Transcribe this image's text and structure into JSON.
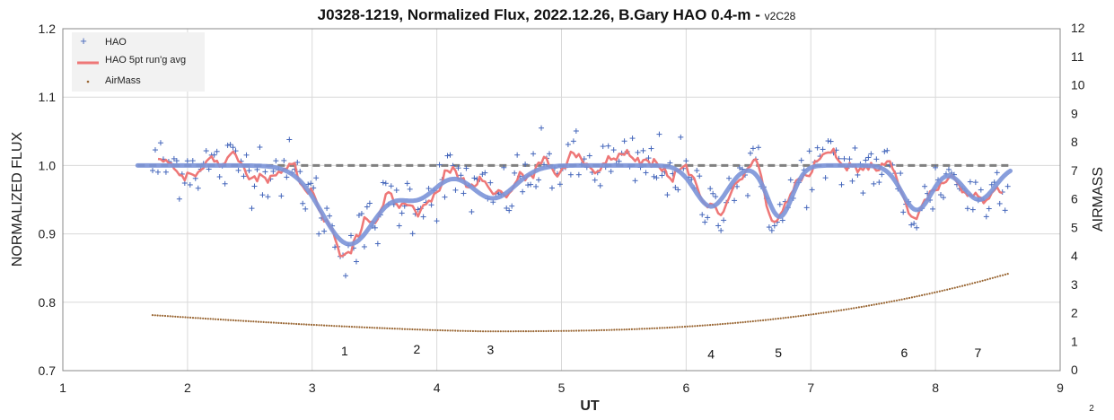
{
  "chart_data": {
    "type": "scatter",
    "title": "J0328-1219, Normalized Flux, 2022.12.26, B.Gary HAO 0.4-m - ",
    "title_suffix": "v2C28",
    "xlabel": "UT",
    "ylabel": "NORMALIZED FLUX",
    "y2label": "AIRMASS",
    "xlim": [
      1,
      9
    ],
    "ylim": [
      0.7,
      1.2
    ],
    "y2lim": [
      0,
      12
    ],
    "x_ticks": [
      "1",
      "2",
      "3",
      "4",
      "5",
      "6",
      "7",
      "8",
      "9"
    ],
    "y_ticks": [
      "0.7",
      "0.8",
      "0.9",
      "1.0",
      "1.1",
      "1.2"
    ],
    "y2_ticks": [
      "0",
      "1",
      "2",
      "3",
      "4",
      "5",
      "6",
      "7",
      "8",
      "9",
      "10",
      "11",
      "12"
    ],
    "grid": true,
    "legend_position": "top-left",
    "legend": [
      {
        "name": "HAO",
        "symbol": "plus",
        "color": "#4466bb"
      },
      {
        "name": "HAO 5pt run'g avg",
        "symbol": "line",
        "color": "#ee7777"
      },
      {
        "name": "AirMass",
        "symbol": "dot",
        "color": "#996633"
      }
    ],
    "reference_line": {
      "y": 1.0,
      "x_start": 1.6,
      "x_end": 8.6,
      "color": "#808080",
      "style": "dashed"
    },
    "model": {
      "color": "#7b93d8",
      "baseline_start": 1.6,
      "baseline_end": 8.6,
      "dips": [
        {
          "label": "1",
          "x_center": 3.3,
          "depth": 0.115,
          "width": 0.22
        },
        {
          "label": "2",
          "x_center": 3.85,
          "depth": 0.045,
          "width": 0.16
        },
        {
          "label": "3",
          "x_center": 4.45,
          "depth": 0.048,
          "width": 0.18
        },
        {
          "label": "4",
          "x_center": 6.2,
          "depth": 0.06,
          "width": 0.13
        },
        {
          "label": "5",
          "x_center": 6.75,
          "depth": 0.075,
          "width": 0.1
        },
        {
          "label": "6",
          "x_center": 7.85,
          "depth": 0.065,
          "width": 0.12
        },
        {
          "label": "7",
          "x_center": 8.35,
          "depth": 0.05,
          "width": 0.13
        }
      ]
    },
    "annotations": [
      {
        "text": "1",
        "x": 3.26,
        "y": 0.722
      },
      {
        "text": "2",
        "x": 3.84,
        "y": 0.725
      },
      {
        "text": "3",
        "x": 4.43,
        "y": 0.724
      },
      {
        "text": "4",
        "x": 6.2,
        "y": 0.718
      },
      {
        "text": "5",
        "x": 6.74,
        "y": 0.72
      },
      {
        "text": "6",
        "x": 7.75,
        "y": 0.72
      },
      {
        "text": "7",
        "x": 8.34,
        "y": 0.72
      }
    ],
    "airmass": {
      "x_start": 1.72,
      "x_end": 8.58,
      "x_min": 4.4,
      "airmass_min": 1.38,
      "airmass_start": 1.95,
      "airmass_end": 3.4
    },
    "observations": {
      "x_start": 1.72,
      "x_end": 8.58,
      "count": 320,
      "scatter": 0.028
    }
  },
  "page_corner_label": "2"
}
